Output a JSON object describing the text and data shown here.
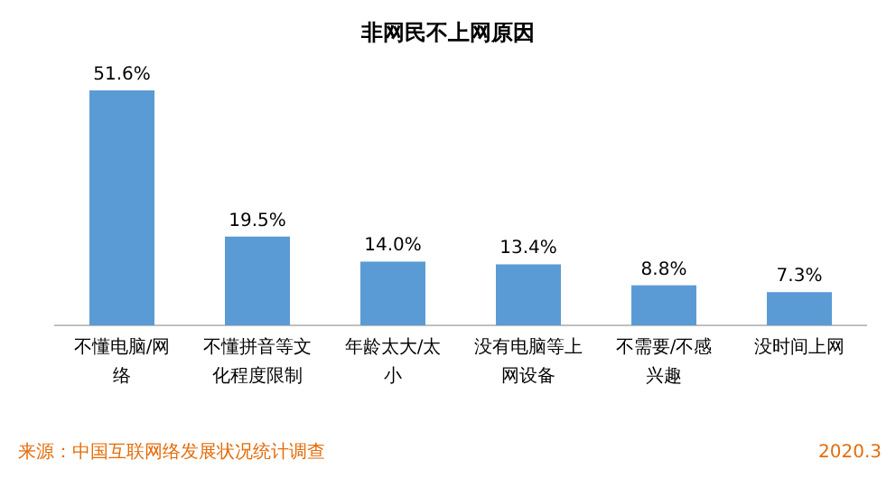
{
  "chart_data": {
    "type": "bar",
    "title": "非网民不上网原因",
    "categories": [
      "不懂电脑/网络",
      "不懂拼音等文化程度限制",
      "年龄太大/太小",
      "没有电脑等上网设备",
      "不需要/不感兴趣",
      "没时间上网"
    ],
    "values": [
      51.6,
      19.5,
      14.0,
      13.4,
      8.8,
      7.3
    ],
    "value_labels": [
      "51.6%",
      "19.5%",
      "14.0%",
      "13.4%",
      "8.8%",
      "7.3%"
    ],
    "color": "#5b9bd5",
    "annotations": [
      "来源：中国互联网络发展状况统计调查",
      "2020.3"
    ]
  }
}
